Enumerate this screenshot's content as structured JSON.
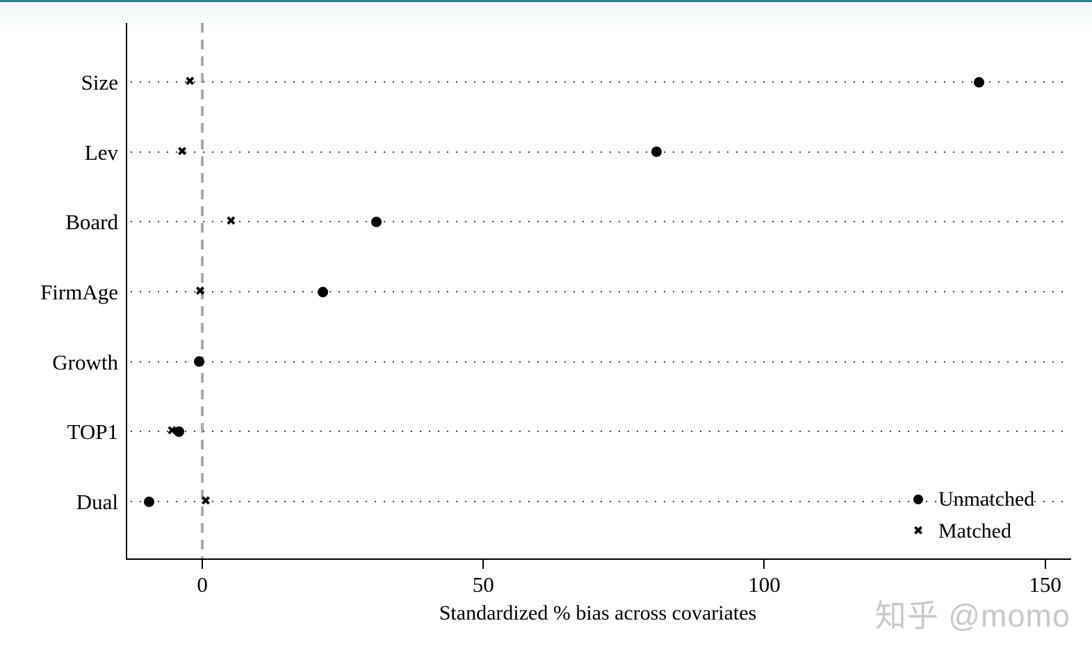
{
  "page": {
    "top_accent_color": "#2a7f90",
    "watermark": "知乎 @momo"
  },
  "icons": {
    "x_marker_glyph": "✖"
  },
  "chart_data": {
    "type": "scatter",
    "subtype": "horizontal-dot-plot (covariate balance plot)",
    "categories": [
      "Size",
      "Lev",
      "Board",
      "FirmAge",
      "Growth",
      "TOP1",
      "Dual"
    ],
    "series": [
      {
        "name": "Unmatched",
        "marker": "circle",
        "values": [
          138.2,
          80.8,
          31.0,
          21.5,
          -0.6,
          -4.2,
          -9.5
        ]
      },
      {
        "name": "Matched",
        "marker": "x",
        "values": [
          -2.2,
          -3.6,
          5.1,
          -0.4,
          -0.6,
          -5.4,
          0.6
        ]
      }
    ],
    "title": "",
    "xlabel": "Standardized % bias across covariates",
    "ylabel": "",
    "x_ticks": [
      0,
      50,
      100,
      150
    ],
    "xlim": [
      -13.5,
      154.5
    ],
    "reference_line_x": 0,
    "grid": "horizontal dotted line per category",
    "legend_position": "inside bottom-right"
  }
}
